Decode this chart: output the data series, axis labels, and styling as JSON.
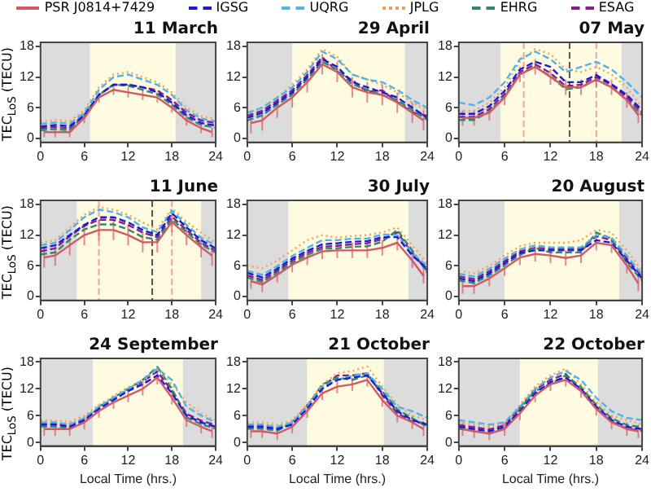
{
  "chart_data": [
    {
      "type": "line",
      "title": "11 March",
      "ylabel": "TEC$_{LoS}$ (TECU)",
      "legend": "top",
      "grid": false,
      "x": [
        0,
        2,
        4,
        6,
        8,
        10,
        12,
        14,
        16,
        18,
        20,
        22,
        24
      ],
      "xlim": [
        0,
        24
      ],
      "xticks": [
        0,
        6,
        12,
        18,
        24
      ],
      "ylim": [
        -0.8,
        18.8
      ],
      "yticks": [
        0,
        6,
        12,
        18
      ],
      "bands": [
        {
          "axis": "x",
          "from": 0,
          "to": 6.8,
          "color": "#dcdcdc"
        },
        {
          "axis": "x",
          "from": 6.8,
          "to": 18.5,
          "color": "#fffbe0"
        },
        {
          "axis": "x",
          "from": 18.5,
          "to": 24,
          "color": "#dcdcdc"
        }
      ],
      "series": [
        {
          "name": "PSR J0814+7429",
          "color": "#d05a64",
          "line_style": "solid",
          "x": [
            0.5,
            2,
            4,
            6,
            8,
            10,
            12,
            14,
            16,
            18,
            20,
            22,
            23.5
          ],
          "values": [
            1.2,
            1.2,
            1.2,
            4,
            8,
            9.5,
            9,
            8.5,
            8,
            6,
            3.5,
            2,
            1.2
          ],
          "errors": [
            1,
            1,
            1,
            1,
            1,
            1,
            1,
            1,
            1,
            1,
            1,
            1,
            1
          ]
        },
        {
          "name": "IGSG",
          "color": "#1a1adb",
          "line_style": "dashed",
          "values": [
            2.3,
            2.6,
            2.4,
            4.5,
            8.5,
            10.5,
            10.5,
            10,
            9,
            7,
            4.5,
            3,
            2.5
          ]
        },
        {
          "name": "UQRG",
          "color": "#4fb3e8",
          "line_style": "dashed",
          "values": [
            2.8,
            3.1,
            2.9,
            5,
            9.5,
            12,
            12.5,
            11.5,
            10.5,
            8.5,
            5.5,
            3.9,
            3.3
          ]
        },
        {
          "name": "JPLG",
          "color": "#f5a050",
          "line_style": "dotted",
          "values": [
            3.3,
            3.6,
            3.4,
            5.5,
            10,
            12.5,
            13,
            12,
            11,
            9,
            6,
            4.4,
            3.8
          ]
        },
        {
          "name": "EHRG",
          "color": "#2a8a6a",
          "line_style": "dashed",
          "values": [
            1.6,
            1.8,
            1.6,
            4.5,
            8.5,
            10.5,
            10.3,
            9.5,
            8.6,
            6.6,
            4.1,
            2.6,
            2.1
          ]
        },
        {
          "name": "ESAG",
          "color": "#8b1a8b",
          "line_style": "dashed",
          "values": [
            2,
            2.2,
            2,
            4.5,
            8.5,
            10.5,
            10.5,
            10,
            9.4,
            7.5,
            5,
            3.5,
            3
          ]
        }
      ]
    },
    {
      "type": "line",
      "title": "29 April",
      "grid": false,
      "x": [
        0,
        2,
        4,
        6,
        8,
        10,
        12,
        14,
        16,
        18,
        20,
        22,
        24
      ],
      "xlim": [
        0,
        24
      ],
      "xticks": [
        0,
        6,
        12,
        18,
        24
      ],
      "ylim": [
        -0.8,
        18.8
      ],
      "yticks": [
        0,
        6,
        12,
        18
      ],
      "bands": [
        {
          "axis": "x",
          "from": 0,
          "to": 6,
          "color": "#dcdcdc"
        },
        {
          "axis": "x",
          "from": 6,
          "to": 21,
          "color": "#fffbe0"
        },
        {
          "axis": "x",
          "from": 21,
          "to": 24,
          "color": "#dcdcdc"
        }
      ],
      "series": [
        {
          "color": "#d05a64",
          "line_style": "solid",
          "x": [
            0.5,
            2,
            4,
            6,
            8,
            10,
            12,
            14,
            16,
            18,
            20,
            22,
            23.5
          ],
          "values": [
            3,
            3.5,
            6,
            8,
            11,
            14.5,
            13,
            10,
            9,
            8.5,
            7,
            5,
            3.5
          ],
          "errors": [
            2,
            2,
            2,
            2,
            2,
            2,
            2,
            2,
            2,
            2,
            2,
            2,
            2
          ]
        },
        {
          "color": "#1a1adb",
          "line_style": "dashed",
          "values": [
            4,
            5,
            7,
            9,
            12,
            15.5,
            14,
            11,
            10,
            9,
            8,
            6,
            4
          ]
        },
        {
          "color": "#4fb3e8",
          "line_style": "dashed",
          "values": [
            5,
            6,
            8,
            10,
            13,
            17,
            15.5,
            12.5,
            11.5,
            11,
            9.5,
            7.5,
            6
          ]
        },
        {
          "color": "#f5a050",
          "line_style": "dotted",
          "values": [
            5,
            6,
            8,
            10.5,
            13.5,
            17.5,
            16,
            12.5,
            11.5,
            10.5,
            9,
            7,
            5.5
          ]
        },
        {
          "color": "#2a8a6a",
          "line_style": "dashed",
          "values": [
            3.5,
            4.5,
            6.6,
            8.6,
            11.6,
            15,
            13.5,
            10.6,
            9.5,
            8.5,
            7.5,
            5.5,
            3.6
          ]
        },
        {
          "color": "#8b1a8b",
          "line_style": "dashed",
          "values": [
            4.4,
            5.4,
            7.4,
            9.4,
            12.4,
            15.9,
            13.1,
            11.4,
            9.1,
            9.4,
            7.1,
            5.1,
            4.4
          ]
        }
      ]
    },
    {
      "type": "line",
      "title": "07 May",
      "grid": false,
      "x": [
        0,
        2,
        4,
        6,
        8,
        10,
        12,
        14,
        16,
        18,
        20,
        22,
        24
      ],
      "xlim": [
        0,
        24
      ],
      "xticks": [
        0,
        6,
        12,
        18,
        24
      ],
      "ylim": [
        -0.8,
        18.8
      ],
      "yticks": [
        0,
        6,
        12,
        18
      ],
      "bands": [
        {
          "axis": "x",
          "from": 0,
          "to": 5.5,
          "color": "#dcdcdc"
        },
        {
          "axis": "x",
          "from": 5.5,
          "to": 21.3,
          "color": "#fffbe0"
        },
        {
          "axis": "x",
          "from": 21.3,
          "to": 24,
          "color": "#dcdcdc"
        }
      ],
      "ref_lines": [
        {
          "axis": "x",
          "value": 8.5,
          "color": "#f4a0a8",
          "line_style": "dashed"
        },
        {
          "axis": "x",
          "value": 18,
          "color": "#f4a0a8",
          "line_style": "dashed"
        },
        {
          "axis": "x",
          "value": 14.5,
          "color": "#555555",
          "line_style": "dashed"
        }
      ],
      "series": [
        {
          "color": "#d05a64",
          "line_style": "solid",
          "x": [
            0.5,
            2,
            4,
            6,
            8,
            10,
            12,
            14,
            16,
            18,
            20,
            22,
            23.5
          ],
          "values": [
            4,
            4,
            5,
            8,
            12.5,
            14,
            12,
            10,
            10,
            11.5,
            10,
            7.5,
            4.5
          ],
          "errors": [
            1.5,
            1.5,
            1.5,
            1.5,
            1.5,
            1.5,
            1.5,
            1.5,
            1.5,
            1.5,
            1.5,
            1.5,
            1.5
          ]
        },
        {
          "color": "#1a1adb",
          "line_style": "dashed",
          "values": [
            4.8,
            4.8,
            6.3,
            9.3,
            13.5,
            15,
            14,
            11,
            11,
            12.4,
            10.6,
            8.5,
            5.5
          ]
        },
        {
          "color": "#4fb3e8",
          "line_style": "dashed",
          "values": [
            7,
            6.5,
            8,
            11,
            15.5,
            17,
            15.5,
            13,
            14,
            15,
            13.5,
            11,
            8
          ]
        },
        {
          "color": "#f5a050",
          "line_style": "dotted",
          "values": [
            5.4,
            5.4,
            7,
            10,
            15,
            17.5,
            16.5,
            13.5,
            13,
            14,
            12.5,
            10,
            6
          ]
        },
        {
          "color": "#2a8a6a",
          "line_style": "dashed",
          "values": [
            3.6,
            3.6,
            5.2,
            8.2,
            12.6,
            14,
            12.2,
            9.6,
            10,
            11.5,
            10,
            7.5,
            4.5
          ]
        },
        {
          "color": "#8b1a8b",
          "line_style": "dashed",
          "values": [
            4.2,
            4.2,
            5.7,
            8.7,
            13,
            14.5,
            12.8,
            10.2,
            10.5,
            12,
            10.5,
            8,
            5
          ]
        }
      ]
    },
    {
      "type": "line",
      "title": "11 June",
      "ylabel": "TEC$_{LoS}$ (TECU)",
      "grid": false,
      "x": [
        0,
        2,
        4,
        6,
        8,
        10,
        12,
        14,
        16,
        18,
        20,
        22,
        24
      ],
      "xlim": [
        0,
        24
      ],
      "xticks": [
        0,
        6,
        12,
        18,
        24
      ],
      "ylim": [
        -0.8,
        18.8
      ],
      "yticks": [
        0,
        6,
        12,
        18
      ],
      "bands": [
        {
          "axis": "x",
          "from": 0,
          "to": 5,
          "color": "#dcdcdc"
        },
        {
          "axis": "x",
          "from": 5,
          "to": 22,
          "color": "#fffbe0"
        },
        {
          "axis": "x",
          "from": 22,
          "to": 24,
          "color": "#dcdcdc"
        }
      ],
      "ref_lines": [
        {
          "axis": "x",
          "value": 8,
          "color": "#f4a0a8",
          "line_style": "dashed"
        },
        {
          "axis": "x",
          "value": 18,
          "color": "#f4a0a8",
          "line_style": "dashed"
        },
        {
          "axis": "x",
          "value": 15.3,
          "color": "#555555",
          "line_style": "dashed"
        }
      ],
      "series": [
        {
          "color": "#d05a64",
          "line_style": "solid",
          "x": [
            0.5,
            2,
            4,
            6,
            8,
            10,
            12,
            14,
            16,
            18,
            20,
            22,
            23.5
          ],
          "values": [
            7.6,
            8,
            10,
            12,
            13,
            13,
            12,
            10.6,
            10.6,
            14.6,
            12,
            9.6,
            8
          ],
          "errors": [
            2,
            2,
            2,
            2,
            2,
            2,
            2,
            2,
            2,
            2,
            2,
            2,
            2
          ]
        },
        {
          "color": "#1a1adb",
          "line_style": "dashed",
          "values": [
            9.4,
            10,
            12,
            14,
            15.5,
            15.5,
            14.5,
            13,
            12,
            16.3,
            13.5,
            11,
            9.4
          ]
        },
        {
          "color": "#4fb3e8",
          "line_style": "dashed",
          "values": [
            10,
            10.5,
            13,
            15.5,
            17,
            16.5,
            15.5,
            13.5,
            12.6,
            16.8,
            14,
            11.5,
            10
          ]
        },
        {
          "color": "#f5a050",
          "line_style": "dotted",
          "values": [
            10.5,
            11,
            13.5,
            16,
            17.5,
            17,
            16,
            14.5,
            13.1,
            17.2,
            14.6,
            12.5,
            10.5
          ]
        },
        {
          "color": "#2a8a6a",
          "line_style": "dashed",
          "values": [
            8.2,
            8.6,
            11.1,
            13.1,
            14.1,
            14.1,
            13.1,
            11.6,
            11.1,
            15.1,
            12.6,
            10.1,
            8.6
          ]
        },
        {
          "color": "#8b1a8b",
          "line_style": "dashed",
          "values": [
            8.8,
            9.4,
            11.8,
            13.8,
            15,
            15,
            14,
            12.5,
            11.6,
            15.6,
            13,
            10.5,
            8.9
          ]
        }
      ]
    },
    {
      "type": "line",
      "title": "30 July",
      "grid": false,
      "x": [
        0,
        2,
        4,
        6,
        8,
        10,
        12,
        14,
        16,
        18,
        20,
        22,
        24
      ],
      "xlim": [
        0,
        24
      ],
      "xticks": [
        0,
        6,
        12,
        18,
        24
      ],
      "ylim": [
        -0.8,
        18.8
      ],
      "yticks": [
        0,
        6,
        12,
        18
      ],
      "bands": [
        {
          "axis": "x",
          "from": 0,
          "to": 5.5,
          "color": "#dcdcdc"
        },
        {
          "axis": "x",
          "from": 5.5,
          "to": 21.5,
          "color": "#fffbe0"
        },
        {
          "axis": "x",
          "from": 21.5,
          "to": 24,
          "color": "#dcdcdc"
        }
      ],
      "series": [
        {
          "color": "#d05a64",
          "line_style": "solid",
          "x": [
            0.5,
            2,
            4,
            6,
            8,
            10,
            12,
            14,
            16,
            18,
            20,
            22,
            23.5
          ],
          "values": [
            3,
            2.3,
            4.2,
            6.2,
            7.6,
            8.8,
            9,
            9,
            9,
            9.5,
            10.5,
            7,
            4
          ],
          "errors": [
            1.5,
            1.5,
            1.5,
            1.5,
            1.5,
            1.5,
            1.5,
            1.5,
            1.5,
            1.5,
            1.5,
            1.5,
            1.5
          ]
        },
        {
          "color": "#1a1adb",
          "line_style": "dashed",
          "values": [
            4.6,
            3.7,
            5.4,
            7.4,
            8.9,
            10.2,
            10.4,
            10.7,
            10.8,
            11.6,
            11.6,
            8,
            5.4
          ]
        },
        {
          "color": "#4fb3e8",
          "line_style": "dashed",
          "values": [
            5,
            4.2,
            5.9,
            7.9,
            9.5,
            11,
            11,
            11.3,
            11.3,
            12.1,
            12,
            8.5,
            5.9
          ]
        },
        {
          "color": "#f5a050",
          "line_style": "dotted",
          "values": [
            6,
            5.5,
            7,
            9,
            11,
            12,
            11.5,
            11.8,
            12,
            12.5,
            13.5,
            10,
            6.4
          ]
        },
        {
          "color": "#2a8a6a",
          "line_style": "dashed",
          "values": [
            3.7,
            2.8,
            4.6,
            6.6,
            8.1,
            9.3,
            9.4,
            9.7,
            9.8,
            10.7,
            13,
            9,
            4.6
          ]
        },
        {
          "color": "#8b1a8b",
          "line_style": "dashed",
          "values": [
            4.1,
            3.2,
            5,
            7,
            8.5,
            9.7,
            9.9,
            10.2,
            10.4,
            11.2,
            12.5,
            8.5,
            5
          ]
        }
      ]
    },
    {
      "type": "line",
      "title": "20 August",
      "grid": false,
      "x": [
        0,
        2,
        4,
        6,
        8,
        10,
        12,
        14,
        16,
        18,
        20,
        22,
        24
      ],
      "xlim": [
        0,
        24
      ],
      "xticks": [
        0,
        6,
        12,
        18,
        24
      ],
      "ylim": [
        -0.8,
        18.8
      ],
      "yticks": [
        0,
        6,
        12,
        18
      ],
      "bands": [
        {
          "axis": "x",
          "from": 0,
          "to": 6,
          "color": "#dcdcdc"
        },
        {
          "axis": "x",
          "from": 6,
          "to": 21,
          "color": "#fffbe0"
        },
        {
          "axis": "x",
          "from": 21,
          "to": 24,
          "color": "#dcdcdc"
        }
      ],
      "series": [
        {
          "color": "#d05a64",
          "line_style": "solid",
          "x": [
            0.5,
            2,
            4,
            6,
            8,
            10,
            12,
            14,
            16,
            18,
            20,
            22,
            23.5
          ],
          "values": [
            2,
            2,
            3.5,
            5.5,
            7.6,
            8.3,
            8,
            7.5,
            8,
            10.5,
            10,
            6,
            2.5
          ],
          "errors": [
            1.5,
            1.5,
            1.5,
            1.5,
            1.5,
            1.5,
            1.5,
            1.5,
            1.5,
            1.5,
            1.5,
            1.5,
            1.5
          ]
        },
        {
          "color": "#1a1adb",
          "line_style": "dashed",
          "values": [
            3.5,
            3,
            4.5,
            6.5,
            8.5,
            9,
            9,
            9,
            9,
            11,
            10.5,
            7,
            3.5
          ]
        },
        {
          "color": "#4fb3e8",
          "line_style": "dashed",
          "values": [
            4.4,
            3.9,
            5.4,
            7.4,
            9.2,
            10,
            9.6,
            9.6,
            9.6,
            12,
            11.5,
            8,
            4.2
          ]
        },
        {
          "color": "#f5a050",
          "line_style": "dotted",
          "values": [
            5,
            4.5,
            6,
            8,
            9.8,
            10.5,
            10.5,
            10.5,
            11,
            13,
            12.5,
            9,
            5
          ]
        },
        {
          "color": "#2a8a6a",
          "line_style": "dashed",
          "values": [
            3.1,
            2.6,
            4.1,
            6.1,
            8.1,
            9.5,
            8.6,
            8.6,
            8.6,
            12.5,
            11.3,
            6.6,
            3.1
          ]
        },
        {
          "color": "#8b1a8b",
          "line_style": "dashed",
          "values": [
            3.9,
            3.4,
            4.9,
            6.9,
            8.8,
            9.5,
            9.3,
            9.3,
            9.3,
            11.8,
            11,
            7.4,
            3.8
          ]
        }
      ]
    },
    {
      "type": "line",
      "title": "24 September",
      "ylabel": "TEC$_{LoS}$ (TECU)",
      "xlabel": "Local Time (hrs.)",
      "grid": false,
      "x": [
        0,
        2,
        4,
        6,
        8,
        10,
        12,
        14,
        16,
        18,
        20,
        22,
        24
      ],
      "xlim": [
        0,
        24
      ],
      "xticks": [
        0,
        6,
        12,
        18,
        24
      ],
      "ylim": [
        -0.8,
        18.8
      ],
      "yticks": [
        0,
        6,
        12,
        18
      ],
      "bands": [
        {
          "axis": "x",
          "from": 0,
          "to": 7.2,
          "color": "#dcdcdc"
        },
        {
          "axis": "x",
          "from": 7.2,
          "to": 19.5,
          "color": "#fffbe0"
        },
        {
          "axis": "x",
          "from": 19.5,
          "to": 24,
          "color": "#dcdcdc"
        }
      ],
      "series": [
        {
          "color": "#d05a64",
          "line_style": "solid",
          "x": [
            0.5,
            2,
            4,
            6,
            8,
            10,
            12,
            14,
            16,
            18,
            20,
            22,
            23.5
          ],
          "values": [
            3,
            3,
            3,
            4.5,
            7,
            9,
            10.5,
            12,
            14.5,
            10,
            5,
            3.5,
            2.5
          ],
          "errors": [
            1.5,
            1.5,
            1.5,
            1.5,
            1.5,
            1.5,
            1.5,
            1.5,
            1.5,
            1.5,
            1.5,
            1.5,
            1.5
          ]
        },
        {
          "color": "#1a1adb",
          "line_style": "dashed",
          "values": [
            4,
            4,
            3.5,
            5,
            7.5,
            9.5,
            11.5,
            13,
            15,
            11,
            6,
            4.5,
            3.5
          ]
        },
        {
          "color": "#4fb3e8",
          "line_style": "dashed",
          "values": [
            4.5,
            4.5,
            4,
            5.5,
            8,
            10,
            12,
            14,
            16.5,
            14,
            8,
            6,
            4.5
          ]
        },
        {
          "color": "#f5a050",
          "line_style": "dotted",
          "values": [
            5,
            4.9,
            4.6,
            6,
            8.4,
            10.4,
            12.4,
            13.5,
            16.5,
            13,
            9,
            6.5,
            5
          ]
        },
        {
          "color": "#2a8a6a",
          "line_style": "dashed",
          "values": [
            3.6,
            3.6,
            3.1,
            4.6,
            8,
            10,
            12,
            14,
            16.9,
            12,
            5.6,
            4.1,
            3.1
          ]
        },
        {
          "color": "#8b1a8b",
          "line_style": "dashed",
          "values": [
            4.3,
            4.3,
            3.8,
            5.3,
            7.7,
            9.7,
            11.7,
            13.6,
            15.9,
            11.5,
            6.4,
            4.9,
            3.9
          ]
        }
      ]
    },
    {
      "type": "line",
      "title": "21 October",
      "xlabel": "Local Time (hrs.)",
      "grid": false,
      "x": [
        0,
        2,
        4,
        6,
        8,
        10,
        12,
        14,
        16,
        18,
        20,
        22,
        24
      ],
      "xlim": [
        0,
        24
      ],
      "xticks": [
        0,
        6,
        12,
        18,
        24
      ],
      "ylim": [
        -0.8,
        18.8
      ],
      "yticks": [
        0,
        6,
        12,
        18
      ],
      "bands": [
        {
          "axis": "x",
          "from": 0,
          "to": 8,
          "color": "#dcdcdc"
        },
        {
          "axis": "x",
          "from": 8,
          "to": 18.2,
          "color": "#fffbe0"
        },
        {
          "axis": "x",
          "from": 18.2,
          "to": 24,
          "color": "#dcdcdc"
        }
      ],
      "series": [
        {
          "color": "#d05a64",
          "line_style": "solid",
          "x": [
            0.5,
            2,
            4,
            6,
            8,
            10,
            12,
            14,
            16,
            18,
            20,
            22,
            23.5
          ],
          "values": [
            2.5,
            2.5,
            2,
            3.5,
            7,
            11,
            12.5,
            13,
            14,
            9.5,
            6,
            4.5,
            3
          ],
          "errors": [
            1.5,
            1.5,
            1.5,
            1.5,
            1.5,
            1.5,
            1.5,
            1.5,
            1.5,
            1.5,
            1.5,
            1.5,
            1.5
          ]
        },
        {
          "color": "#1a1adb",
          "line_style": "dashed",
          "values": [
            3.5,
            3.5,
            3,
            4,
            7.5,
            12,
            14,
            14.5,
            15,
            11,
            7,
            5,
            4
          ]
        },
        {
          "color": "#4fb3e8",
          "line_style": "dashed",
          "values": [
            4,
            4,
            3.5,
            4.5,
            8,
            12.5,
            14,
            14.9,
            15.5,
            12,
            8,
            7,
            5.5
          ]
        },
        {
          "color": "#f5a050",
          "line_style": "dotted",
          "values": [
            4.5,
            4.5,
            4,
            5,
            8.5,
            13,
            15.5,
            16,
            17,
            12.5,
            8.5,
            6,
            5
          ]
        },
        {
          "color": "#2a8a6a",
          "line_style": "dashed",
          "values": [
            3.1,
            3.1,
            2.6,
            4.5,
            8,
            13,
            14.5,
            14,
            15,
            11.4,
            7.4,
            5.4,
            3.5
          ]
        },
        {
          "color": "#8b1a8b",
          "line_style": "dashed",
          "values": [
            3.8,
            3.8,
            3.3,
            4.3,
            8.3,
            12.5,
            15,
            15,
            15.5,
            10.6,
            6.6,
            4.6,
            4.3
          ]
        }
      ]
    },
    {
      "type": "line",
      "title": "22 October",
      "xlabel": "Local Time (hrs.)",
      "grid": false,
      "x": [
        0,
        2,
        4,
        6,
        8,
        10,
        12,
        14,
        16,
        18,
        20,
        22,
        24
      ],
      "xlim": [
        0,
        24
      ],
      "xticks": [
        0,
        6,
        12,
        18,
        24
      ],
      "ylim": [
        -0.8,
        18.8
      ],
      "yticks": [
        0,
        6,
        12,
        18
      ],
      "bands": [
        {
          "axis": "x",
          "from": 0,
          "to": 8,
          "color": "#dcdcdc"
        },
        {
          "axis": "x",
          "from": 8,
          "to": 18.2,
          "color": "#fffbe0"
        },
        {
          "axis": "x",
          "from": 18.2,
          "to": 24,
          "color": "#dcdcdc"
        }
      ],
      "series": [
        {
          "color": "#d05a64",
          "line_style": "solid",
          "x": [
            0.5,
            2,
            4,
            6,
            8,
            10,
            12,
            14,
            16,
            18,
            20,
            22,
            23.5
          ],
          "values": [
            3,
            2.5,
            2,
            3,
            6.5,
            10.5,
            13,
            14,
            11.5,
            7.5,
            4.5,
            3,
            2.5
          ],
          "errors": [
            1.5,
            1.5,
            1.5,
            1.5,
            1.5,
            1.5,
            1.5,
            1.5,
            1.5,
            1.5,
            1.5,
            1.5,
            1.5
          ]
        },
        {
          "color": "#1a1adb",
          "line_style": "dashed",
          "values": [
            3.5,
            3,
            2.5,
            3.5,
            7,
            11,
            13.5,
            14.5,
            12,
            8,
            5,
            3.5,
            3
          ]
        },
        {
          "color": "#4fb3e8",
          "line_style": "dashed",
          "values": [
            5,
            4.5,
            4,
            4.5,
            8,
            12,
            14.5,
            16,
            14,
            10,
            7,
            5.5,
            5
          ]
        },
        {
          "color": "#f5a050",
          "line_style": "dotted",
          "values": [
            4.5,
            4,
            3.5,
            4.2,
            8.4,
            12.5,
            15,
            16.5,
            13,
            9,
            6,
            5,
            4
          ]
        },
        {
          "color": "#2a8a6a",
          "line_style": "dashed",
          "values": [
            3.1,
            2.6,
            2,
            3.1,
            7.5,
            11.5,
            13.1,
            15,
            12.4,
            8.4,
            5.4,
            3.9,
            3.4
          ]
        },
        {
          "color": "#8b1a8b",
          "line_style": "dashed",
          "values": [
            3.9,
            3.4,
            2.9,
            3.9,
            7.8,
            11.8,
            14,
            15.3,
            11.6,
            7.6,
            4.6,
            3.1,
            2.6
          ]
        }
      ]
    }
  ]
}
